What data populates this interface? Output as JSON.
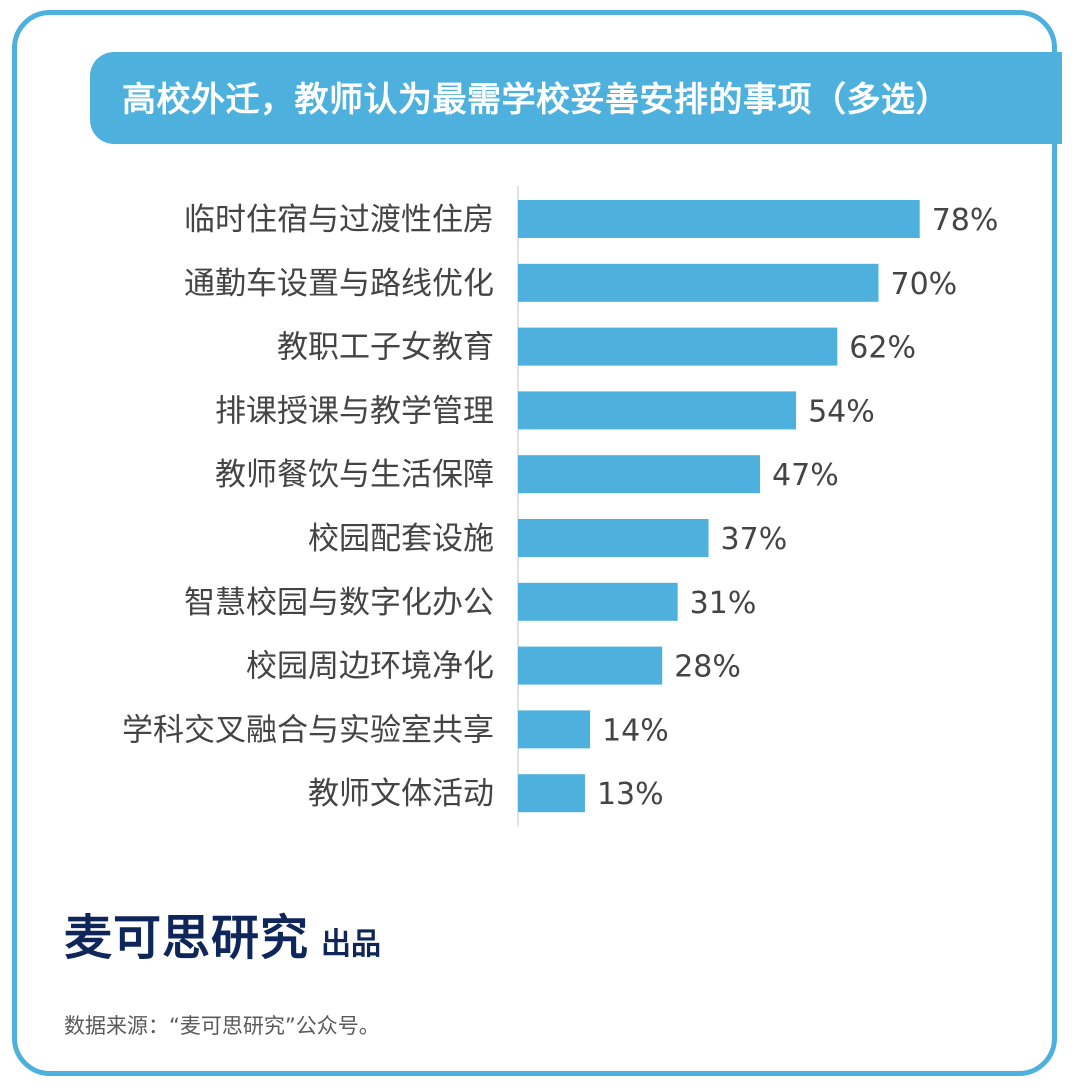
{
  "title": "高校外迁，教师认为最需学校妥善安排的事项（多选）",
  "brand": {
    "name": "麦可思研究",
    "suffix": "出品"
  },
  "source": "数据来源：“麦可思研究”公众号。",
  "colors": {
    "accent": "#4eb1dd",
    "bar": "#4eb1dd",
    "brand_text": "#0e2659",
    "label_text": "#444444"
  },
  "chart_data": {
    "type": "bar",
    "orientation": "horizontal",
    "unit": "%",
    "categories": [
      "临时住宿与过渡性住房",
      "通勤车设置与路线优化",
      "教职工子女教育",
      "排课授课与教学管理",
      "教师餐饮与生活保障",
      "校园配套设施",
      "智慧校园与数字化办公",
      "校园周边环境净化",
      "学科交叉融合与实验室共享",
      "教师文体活动"
    ],
    "values": [
      78,
      70,
      62,
      54,
      47,
      37,
      31,
      28,
      14,
      13
    ],
    "value_labels": [
      "78%",
      "70%",
      "62%",
      "54%",
      "47%",
      "37%",
      "31%",
      "28%",
      "14%",
      "13%"
    ],
    "xlim": [
      0,
      100
    ],
    "grid": false,
    "legend": "none"
  }
}
